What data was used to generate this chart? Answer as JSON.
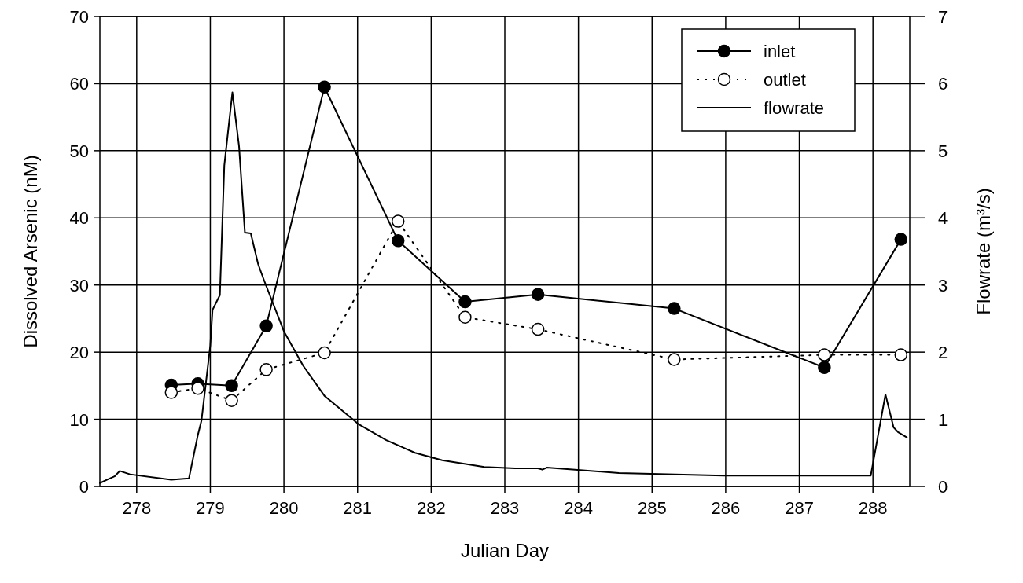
{
  "chart_data": {
    "type": "line",
    "xlabel": "Julian Day",
    "ylabel": "Dissolved Arsenic (nM)",
    "y2label": "Flowrate (m³/s)",
    "xlim": [
      277.5,
      288.5
    ],
    "xticks": [
      278,
      279,
      280,
      281,
      282,
      283,
      284,
      285,
      286,
      287,
      288
    ],
    "ylim": [
      0,
      70
    ],
    "yticks": [
      0,
      10,
      20,
      30,
      40,
      50,
      60,
      70
    ],
    "y2lim": [
      0,
      7
    ],
    "y2ticks": [
      0,
      1,
      2,
      3,
      4,
      5,
      6,
      7
    ],
    "grid": true,
    "legend": "top right",
    "series": [
      {
        "name": "inlet",
        "color": "#000000",
        "marker": "circle",
        "line_style": "solid",
        "x": [
          278.47,
          278.83,
          279.29,
          279.76,
          280.55,
          281.55,
          282.46,
          283.45,
          285.3,
          287.34,
          288.38
        ],
        "values": [
          15.1,
          15.3,
          15.0,
          23.9,
          59.5,
          36.6,
          27.5,
          28.6,
          26.5,
          17.7,
          36.8
        ]
      },
      {
        "name": "outlet",
        "color": "#000000",
        "marker": "circle",
        "line_style": "dotted",
        "x": [
          278.47,
          278.83,
          279.29,
          279.76,
          280.55,
          281.55,
          282.46,
          283.45,
          285.3,
          287.34,
          288.38
        ],
        "values": [
          14.0,
          14.6,
          12.8,
          17.4,
          19.9,
          39.5,
          25.2,
          23.4,
          18.9,
          19.6,
          19.6
        ]
      },
      {
        "name": "flowrate",
        "color": "#000000",
        "marker": "none",
        "line_style": "solid",
        "axis": "y2",
        "x": [
          277.5,
          277.6,
          277.7,
          277.77,
          277.91,
          278.47,
          278.71,
          278.83,
          278.88,
          279.0,
          279.03,
          279.13,
          279.19,
          279.3,
          279.39,
          279.47,
          279.55,
          279.65,
          279.73,
          280.0,
          280.26,
          280.55,
          281.01,
          281.39,
          281.78,
          282.15,
          282.72,
          283.14,
          283.45,
          283.51,
          283.57,
          284.55,
          285.97,
          287.97,
          288.17,
          288.28,
          288.34,
          288.46
        ],
        "values": [
          0.05,
          0.1,
          0.15,
          0.23,
          0.18,
          0.1,
          0.12,
          0.76,
          0.98,
          2.1,
          2.63,
          2.85,
          4.78,
          5.87,
          5.07,
          3.78,
          3.77,
          3.31,
          3.07,
          2.31,
          1.8,
          1.35,
          0.93,
          0.69,
          0.5,
          0.39,
          0.29,
          0.27,
          0.27,
          0.25,
          0.28,
          0.2,
          0.16,
          0.16,
          1.37,
          0.88,
          0.81,
          0.73
        ]
      }
    ]
  }
}
